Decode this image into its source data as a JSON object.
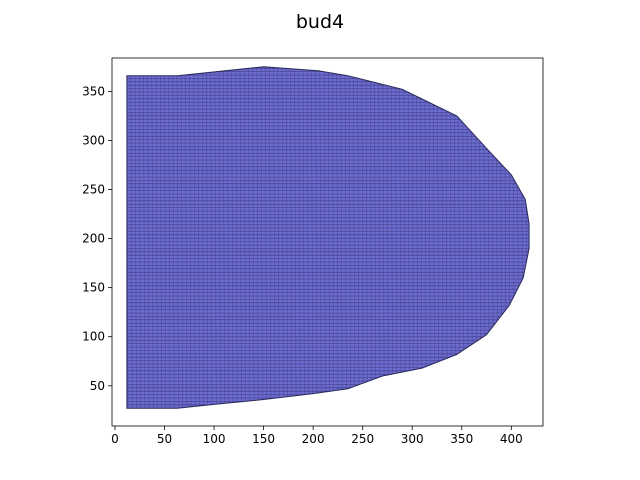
{
  "chart_data": {
    "type": "mesh",
    "title": "bud4",
    "xlabel": "",
    "ylabel": "",
    "xlim": [
      -3,
      432
    ],
    "ylim": [
      9,
      384
    ],
    "xticks": [
      0,
      50,
      100,
      150,
      200,
      250,
      300,
      350,
      400
    ],
    "yticks": [
      50,
      100,
      150,
      200,
      250,
      300,
      350
    ],
    "grid": false,
    "colors": {
      "fill": "#6b6bd0",
      "edge": "#2a2a5a"
    },
    "outline": [
      [
        12,
        27
      ],
      [
        63,
        27
      ],
      [
        100,
        31
      ],
      [
        150,
        36
      ],
      [
        200,
        42
      ],
      [
        235,
        47
      ],
      [
        270,
        60
      ],
      [
        310,
        68
      ],
      [
        345,
        82
      ],
      [
        375,
        102
      ],
      [
        398,
        132
      ],
      [
        412,
        160
      ],
      [
        418,
        190
      ],
      [
        418,
        215
      ],
      [
        414,
        240
      ],
      [
        400,
        265
      ],
      [
        375,
        292
      ],
      [
        345,
        325
      ],
      [
        290,
        352
      ],
      [
        235,
        366
      ],
      [
        205,
        371
      ],
      [
        150,
        375
      ],
      [
        63,
        366
      ],
      [
        12,
        366
      ]
    ]
  }
}
